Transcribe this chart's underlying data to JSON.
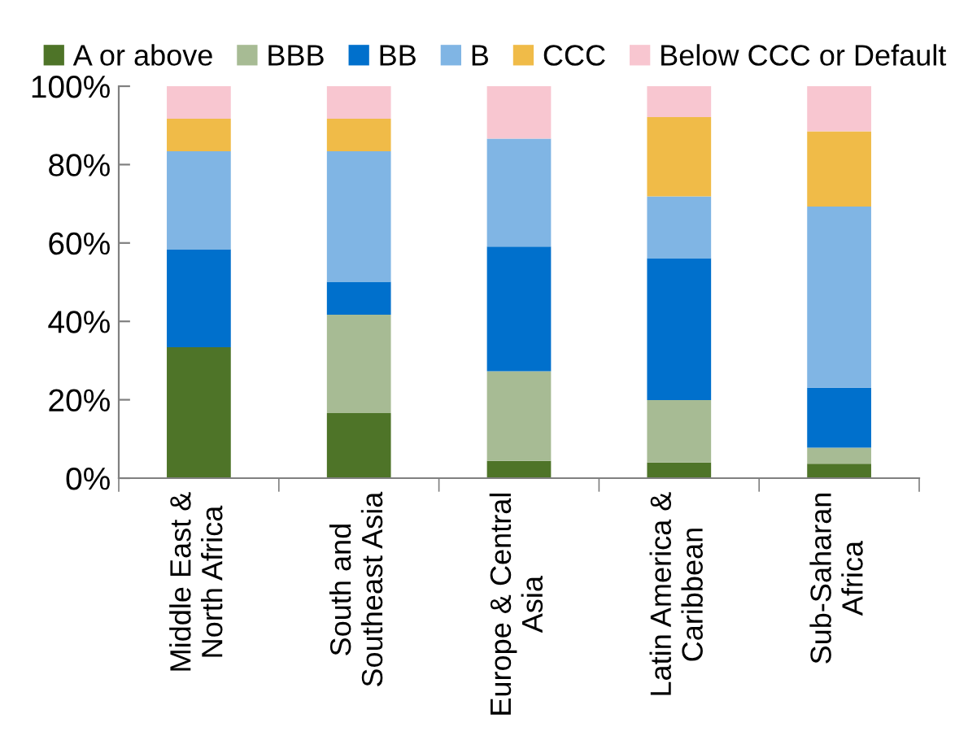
{
  "chart_data": {
    "type": "bar",
    "stacked": true,
    "categories": [
      "Middle East &\nNorth Africa",
      "South and\nSoutheast Asia",
      "Europe & Central\nAsia",
      "Latin America &\nCaribbean",
      "Sub-Saharan\nAfrica"
    ],
    "series": [
      {
        "name": "A or above",
        "color": "#4e7428",
        "values": [
          33.4,
          16.6,
          4.4,
          4.0,
          3.7
        ]
      },
      {
        "name": "BBB",
        "color": "#a7bb94",
        "values": [
          0,
          25.1,
          22.9,
          15.9,
          4.1
        ]
      },
      {
        "name": "BB",
        "color": "#0070cc",
        "values": [
          25.0,
          8.4,
          31.8,
          36.2,
          15.3
        ]
      },
      {
        "name": "B",
        "color": "#80b5e4",
        "values": [
          25.0,
          33.3,
          27.5,
          15.8,
          46.2
        ]
      },
      {
        "name": "CCC",
        "color": "#f0bb48",
        "values": [
          8.3,
          8.3,
          0,
          20.2,
          19.2
        ]
      },
      {
        "name": "Below CCC or Default",
        "color": "#f8c6d0",
        "values": [
          8.3,
          8.3,
          13.4,
          7.9,
          11.5
        ]
      }
    ],
    "ylim": [
      0,
      100
    ],
    "yticks": [
      {
        "value": 0,
        "label": "0%"
      },
      {
        "value": 20,
        "label": "20%"
      },
      {
        "value": 40,
        "label": "40%"
      },
      {
        "value": 60,
        "label": "60%"
      },
      {
        "value": 80,
        "label": "80%"
      },
      {
        "value": 100,
        "label": "100%"
      }
    ],
    "grid": false,
    "legend": "top"
  }
}
